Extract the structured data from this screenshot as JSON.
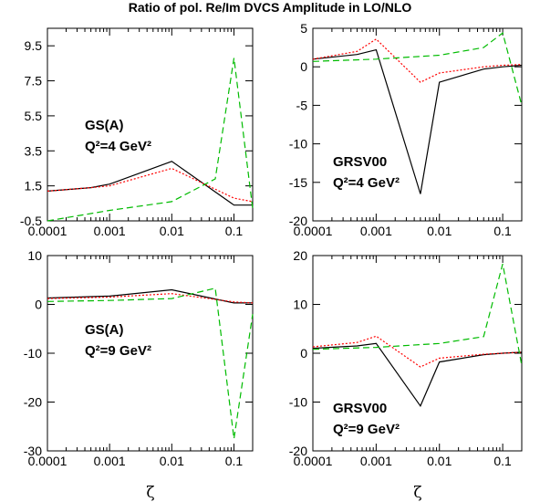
{
  "figure": {
    "title": "Ratio of pol. Re/Im DVCS Amplitude in LO/NLO",
    "xlabel": "ζ"
  },
  "chart_data": [
    {
      "type": "line",
      "title": "",
      "annotation_lines": [
        "GS(A)",
        "Q²=4 GeV²"
      ],
      "xscale": "log",
      "xlim": [
        0.0001,
        0.2
      ],
      "ylim": [
        -0.5,
        10.5
      ],
      "xticks": [
        "0.0001",
        "0.001",
        "0.01",
        "0.1"
      ],
      "yticks": [
        "-0.5",
        "1.5",
        "3.5",
        "5.5",
        "7.5",
        "9.5"
      ],
      "series": [
        {
          "style": "solid",
          "color": "#000000",
          "x": [
            0.0001,
            0.0005,
            0.001,
            0.01,
            0.1,
            0.2
          ],
          "y": [
            1.2,
            1.4,
            1.6,
            2.9,
            0.4,
            0.4
          ]
        },
        {
          "style": "dotted",
          "color": "#ff0000",
          "x": [
            0.0001,
            0.0005,
            0.001,
            0.01,
            0.1,
            0.2
          ],
          "y": [
            1.2,
            1.4,
            1.5,
            2.5,
            0.8,
            0.6
          ]
        },
        {
          "style": "dashed",
          "color": "#00bb00",
          "x": [
            0.0001,
            0.001,
            0.01,
            0.05,
            0.1,
            0.2
          ],
          "y": [
            -0.5,
            0.1,
            0.6,
            1.9,
            8.8,
            0.2
          ]
        }
      ]
    },
    {
      "type": "line",
      "title": "",
      "annotation_lines": [
        "GRSV00",
        "Q²=4 GeV²"
      ],
      "xscale": "log",
      "xlim": [
        0.0001,
        0.2
      ],
      "ylim": [
        -20,
        5
      ],
      "xticks": [
        "0.0001",
        "0.001",
        "0.01",
        "0.1"
      ],
      "yticks": [
        "5",
        "0",
        "-5",
        "-10",
        "-15",
        "-20"
      ],
      "series": [
        {
          "style": "solid",
          "color": "#000000",
          "x": [
            0.0001,
            0.0005,
            0.001,
            0.005,
            0.01,
            0.05,
            0.1,
            0.2
          ],
          "y": [
            1.0,
            1.6,
            2.2,
            -16.5,
            -2.0,
            -0.3,
            0.0,
            0.2
          ]
        },
        {
          "style": "dotted",
          "color": "#ff0000",
          "x": [
            0.0001,
            0.0005,
            0.001,
            0.005,
            0.01,
            0.05,
            0.1,
            0.2
          ],
          "y": [
            1.0,
            2.0,
            3.6,
            -2.0,
            -0.8,
            0.0,
            0.2,
            0.3
          ]
        },
        {
          "style": "dashed",
          "color": "#00bb00",
          "x": [
            0.0001,
            0.001,
            0.01,
            0.05,
            0.1,
            0.2
          ],
          "y": [
            0.7,
            1.0,
            1.5,
            2.5,
            4.4,
            -5.0
          ]
        }
      ]
    },
    {
      "type": "line",
      "title": "",
      "annotation_lines": [
        "GS(A)",
        "Q²=9 GeV²"
      ],
      "xscale": "log",
      "xlim": [
        0.0001,
        0.2
      ],
      "ylim": [
        -30,
        10
      ],
      "xticks": [
        "0.0001",
        "0.001",
        "0.01",
        "0.1"
      ],
      "yticks": [
        "10",
        "0",
        "-10",
        "-20",
        "-30"
      ],
      "series": [
        {
          "style": "solid",
          "color": "#000000",
          "x": [
            0.0001,
            0.001,
            0.01,
            0.1,
            0.2
          ],
          "y": [
            1.3,
            1.7,
            3.0,
            0.3,
            0.3
          ]
        },
        {
          "style": "dotted",
          "color": "#ff0000",
          "x": [
            0.0001,
            0.001,
            0.01,
            0.1,
            0.2
          ],
          "y": [
            1.2,
            1.5,
            2.2,
            0.5,
            0.3
          ]
        },
        {
          "style": "dashed",
          "color": "#00bb00",
          "x": [
            0.0001,
            0.001,
            0.01,
            0.05,
            0.1,
            0.2
          ],
          "y": [
            0.6,
            0.8,
            1.2,
            3.3,
            -27.5,
            -2.0
          ]
        }
      ]
    },
    {
      "type": "line",
      "title": "",
      "annotation_lines": [
        "GRSV00",
        "Q²=9 GeV²"
      ],
      "xscale": "log",
      "xlim": [
        0.0001,
        0.2
      ],
      "ylim": [
        -20,
        20
      ],
      "xticks": [
        "0.0001",
        "0.001",
        "0.01",
        "0.1"
      ],
      "yticks": [
        "20",
        "10",
        "0",
        "-10",
        "-20"
      ],
      "series": [
        {
          "style": "solid",
          "color": "#000000",
          "x": [
            0.0001,
            0.0005,
            0.001,
            0.005,
            0.01,
            0.05,
            0.1,
            0.2
          ],
          "y": [
            1.0,
            1.5,
            2.0,
            -10.8,
            -1.8,
            -0.3,
            0.0,
            0.2
          ]
        },
        {
          "style": "dotted",
          "color": "#ff0000",
          "x": [
            0.0001,
            0.0005,
            0.001,
            0.005,
            0.01,
            0.05,
            0.1,
            0.2
          ],
          "y": [
            1.3,
            2.2,
            3.5,
            -2.8,
            -1.0,
            -0.2,
            0.0,
            0.2
          ]
        },
        {
          "style": "dashed",
          "color": "#00bb00",
          "x": [
            0.0001,
            0.001,
            0.01,
            0.05,
            0.1,
            0.2
          ],
          "y": [
            0.8,
            1.2,
            2.0,
            3.4,
            18.3,
            -2.5
          ]
        }
      ]
    }
  ]
}
